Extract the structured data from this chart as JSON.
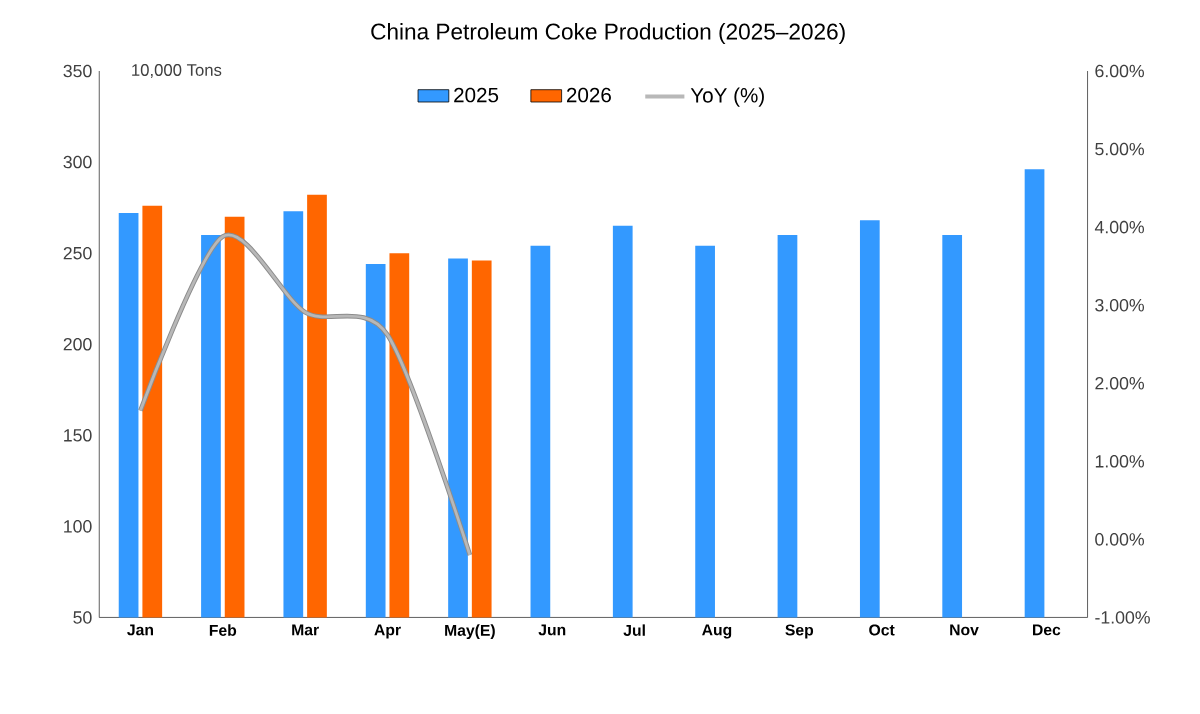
{
  "chart_data": {
    "type": "bar",
    "title": "China Petroleum Coke Production (2025–2026)",
    "ylabel": "10,000 Tons",
    "categories": [
      "Jan",
      "Feb",
      "Mar",
      "Apr",
      "May(E)",
      "Jun",
      "Jul",
      "Aug",
      "Sep",
      "Oct",
      "Nov",
      "Dec"
    ],
    "series": [
      {
        "name": "2025",
        "color": "#3399ff",
        "values": [
          272,
          260,
          273,
          244,
          247,
          254,
          265,
          254,
          260,
          268,
          260,
          296
        ]
      },
      {
        "name": "2026",
        "color": "#ff6600",
        "values": [
          276,
          270,
          282,
          250,
          246,
          null,
          null,
          null,
          null,
          null,
          null,
          null
        ]
      },
      {
        "name": "YoY (%)",
        "type": "line",
        "axis": "y2",
        "color": "#b8b8b8",
        "values": [
          1.65,
          3.88,
          2.91,
          2.62,
          -0.2,
          null,
          null,
          null,
          null,
          null,
          null,
          null
        ]
      }
    ],
    "ylim": [
      50,
      350
    ],
    "yticks": [
      50,
      100,
      150,
      200,
      250,
      300,
      350
    ],
    "y2lim": [
      -1,
      6
    ],
    "y2ticks": [
      {
        "value": -1,
        "label": "-1.00%"
      },
      {
        "value": 0,
        "label": "0.00%"
      },
      {
        "value": 1,
        "label": "1.00%"
      },
      {
        "value": 2,
        "label": "2.00%"
      },
      {
        "value": 3,
        "label": "3.00%"
      },
      {
        "value": 4,
        "label": "4.00%"
      },
      {
        "value": 5,
        "label": "5.00%"
      },
      {
        "value": 6,
        "label": "6.00%"
      }
    ],
    "legend": "top",
    "grid": false
  }
}
